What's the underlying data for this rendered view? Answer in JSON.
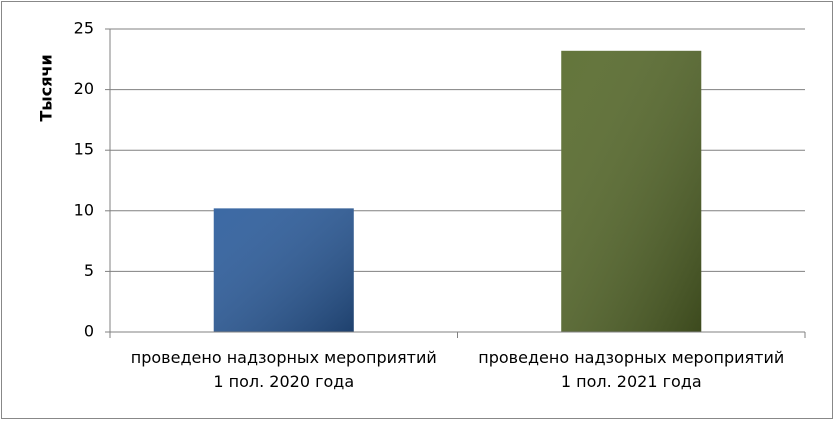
{
  "chart_data": {
    "type": "bar",
    "y_label": "Тысячи",
    "categories": [
      "проведено надзорных мероприятий 1 пол. 2020 года",
      "проведено надзорных мероприятий 1 пол. 2021 года"
    ],
    "values": [
      10.2,
      23.2
    ],
    "colors": [
      "#2b5c9c",
      "#56692a"
    ],
    "ylim": [
      0,
      25
    ],
    "yticks": [
      0,
      5,
      10,
      15,
      20,
      25
    ],
    "grid": true
  }
}
